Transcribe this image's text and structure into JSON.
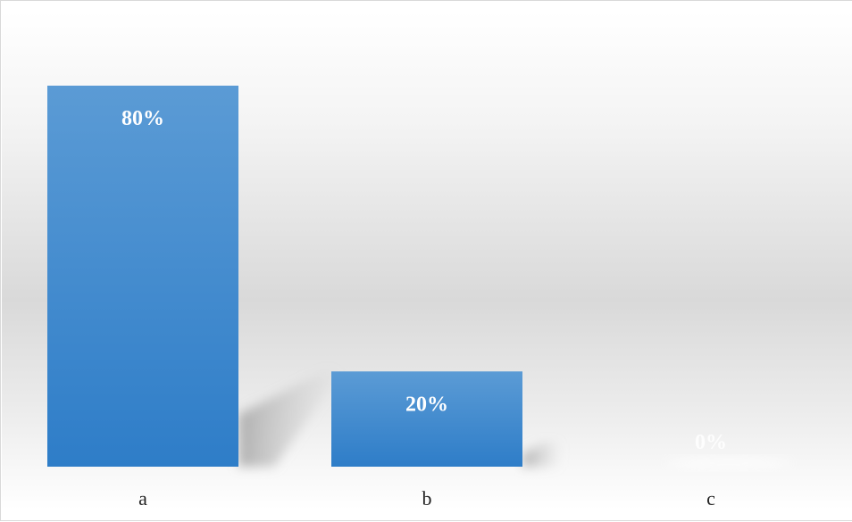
{
  "chart_data": {
    "type": "bar",
    "categories": [
      "a",
      "b",
      "c"
    ],
    "values": [
      80,
      20,
      0
    ],
    "value_labels": [
      "80%",
      "20%",
      "0%"
    ],
    "title": "",
    "xlabel": "",
    "ylabel": "",
    "ylim": [
      0,
      80
    ],
    "grid": false,
    "legend": "none",
    "colors": {
      "bar_top": "#5b9bd5",
      "bar_bottom": "#2e7dc8",
      "background_light": "#ffffff",
      "background_mid": "#d9d9d9"
    }
  }
}
